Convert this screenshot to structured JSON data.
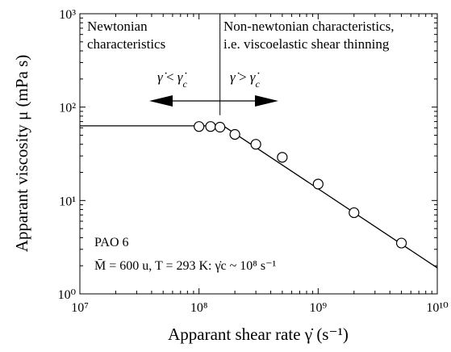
{
  "chart_data": {
    "type": "scatter",
    "x_scale": "log",
    "y_scale": "log",
    "xlim": [
      10000000,
      10000000000
    ],
    "ylim": [
      1,
      1000
    ],
    "grid": false,
    "xlabel": "Apparant shear rate γ̇ (s⁻¹)",
    "ylabel": "Apparant viscosity μ (mPa s)",
    "x_ticks": [
      {
        "value": 10000000,
        "label": "10⁷"
      },
      {
        "value": 100000000,
        "label": "10⁸"
      },
      {
        "value": 1000000000,
        "label": "10⁹"
      },
      {
        "value": 10000000000,
        "label": "10¹⁰"
      }
    ],
    "y_ticks": [
      {
        "value": 1,
        "label": "10⁰"
      },
      {
        "value": 10,
        "label": "10¹"
      },
      {
        "value": 100,
        "label": "10²"
      },
      {
        "value": 1000,
        "label": "10³"
      }
    ],
    "series": [
      {
        "points": [
          {
            "x": 100000000,
            "y": 62
          },
          {
            "x": 125000000,
            "y": 62
          },
          {
            "x": 150000000,
            "y": 61
          },
          {
            "x": 200000000,
            "y": 51
          },
          {
            "x": 300000000,
            "y": 40
          },
          {
            "x": 500000000,
            "y": 29
          },
          {
            "x": 1000000000,
            "y": 15
          },
          {
            "x": 2000000000,
            "y": 7.4
          },
          {
            "x": 5000000000,
            "y": 3.5
          }
        ]
      }
    ],
    "fit_line": [
      {
        "x": 10000000,
        "y": 63
      },
      {
        "x": 160000000,
        "y": 63
      },
      {
        "x": 10000000000,
        "y": 1.9
      }
    ],
    "critical_shear_rate_x": 150000000,
    "annotations": {
      "newtonian": [
        "Newtonian",
        "characteristics"
      ],
      "non_newtonian": [
        "Non-newtonian characteristics,",
        "i.e. viscoelastic shear thinning"
      ],
      "sample_line1": "PAO 6",
      "sample_line2": "M̄ = 600 u, T = 293 K: γ̇c ~ 10⁸ s⁻¹"
    }
  }
}
